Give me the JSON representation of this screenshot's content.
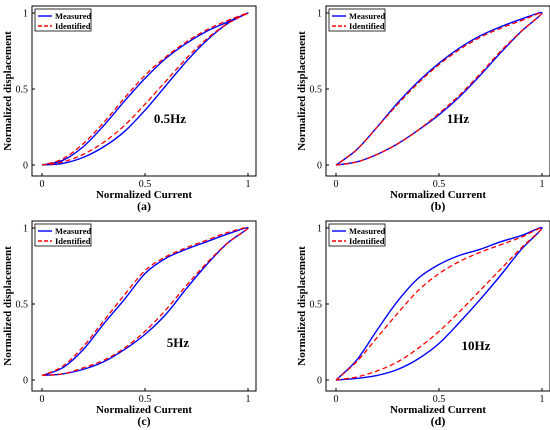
{
  "chart_data": [
    {
      "type": "line",
      "panel_label": "(a)",
      "annotation": "0.5Hz",
      "xlabel": "Normalized Current",
      "ylabel": "Normalized displacement",
      "xlim": [
        0,
        1
      ],
      "ylim": [
        0,
        1
      ],
      "xticks": [
        "0",
        "0.5",
        "1"
      ],
      "yticks": [
        "0",
        "0.5",
        "1"
      ],
      "legend_position": "top-left",
      "colors": {
        "Measured": "#0000ff",
        "Identified": "#ff0000"
      },
      "series": [
        {
          "name": "Measured",
          "style": "solid",
          "ascending": {
            "x": [
              0,
              0.1,
              0.2,
              0.3,
              0.4,
              0.5,
              0.6,
              0.7,
              0.8,
              0.9,
              1.0
            ],
            "y": [
              0.0,
              0.01,
              0.05,
              0.12,
              0.22,
              0.36,
              0.52,
              0.68,
              0.82,
              0.93,
              1.0
            ]
          },
          "descending": {
            "x": [
              1.0,
              0.9,
              0.8,
              0.7,
              0.6,
              0.5,
              0.4,
              0.3,
              0.2,
              0.1,
              0.0
            ],
            "y": [
              1.0,
              0.94,
              0.88,
              0.8,
              0.7,
              0.57,
              0.42,
              0.26,
              0.12,
              0.03,
              0.0
            ]
          }
        },
        {
          "name": "Identified",
          "style": "dashed",
          "ascending": {
            "x": [
              0,
              0.1,
              0.2,
              0.3,
              0.4,
              0.5,
              0.6,
              0.7,
              0.8,
              0.9,
              1.0
            ],
            "y": [
              0.0,
              0.02,
              0.07,
              0.15,
              0.26,
              0.4,
              0.55,
              0.7,
              0.83,
              0.93,
              1.0
            ]
          },
          "descending": {
            "x": [
              1.0,
              0.9,
              0.8,
              0.7,
              0.6,
              0.5,
              0.4,
              0.3,
              0.2,
              0.1,
              0.0
            ],
            "y": [
              1.0,
              0.95,
              0.89,
              0.81,
              0.71,
              0.59,
              0.44,
              0.28,
              0.14,
              0.04,
              0.0
            ]
          }
        }
      ]
    },
    {
      "type": "line",
      "panel_label": "(b)",
      "annotation": "1Hz",
      "xlabel": "Normalized Current",
      "ylabel": "Normalized displacement",
      "xlim": [
        0,
        1
      ],
      "ylim": [
        0,
        1
      ],
      "xticks": [
        "0",
        "0.5",
        "1"
      ],
      "yticks": [
        "0",
        "0.5",
        "1"
      ],
      "legend_position": "top-left",
      "colors": {
        "Measured": "#0000ff",
        "Identified": "#ff0000"
      },
      "series": [
        {
          "name": "Measured",
          "style": "solid",
          "ascending": {
            "x": [
              0,
              0.1,
              0.2,
              0.3,
              0.4,
              0.5,
              0.6,
              0.7,
              0.8,
              0.9,
              1.0
            ],
            "y": [
              0.0,
              0.02,
              0.07,
              0.14,
              0.23,
              0.33,
              0.45,
              0.59,
              0.74,
              0.88,
              1.0
            ]
          },
          "descending": {
            "x": [
              1.0,
              0.9,
              0.8,
              0.7,
              0.6,
              0.5,
              0.4,
              0.3,
              0.2,
              0.1,
              0.0
            ],
            "y": [
              1.0,
              0.96,
              0.91,
              0.85,
              0.77,
              0.67,
              0.55,
              0.41,
              0.25,
              0.1,
              0.0
            ]
          }
        },
        {
          "name": "Identified",
          "style": "dashed",
          "ascending": {
            "x": [
              0,
              0.1,
              0.2,
              0.3,
              0.4,
              0.5,
              0.6,
              0.7,
              0.8,
              0.9,
              1.0
            ],
            "y": [
              0.0,
              0.02,
              0.07,
              0.14,
              0.23,
              0.34,
              0.46,
              0.6,
              0.75,
              0.88,
              1.0
            ]
          },
          "descending": {
            "x": [
              1.0,
              0.9,
              0.8,
              0.7,
              0.6,
              0.5,
              0.4,
              0.3,
              0.2,
              0.1,
              0.0
            ],
            "y": [
              1.0,
              0.95,
              0.9,
              0.84,
              0.76,
              0.66,
              0.54,
              0.4,
              0.25,
              0.1,
              0.0
            ]
          }
        }
      ]
    },
    {
      "type": "line",
      "panel_label": "(c)",
      "annotation": "5Hz",
      "xlabel": "Normalized Current",
      "ylabel": "Normalized displacement",
      "xlim": [
        0,
        1
      ],
      "ylim": [
        0,
        1
      ],
      "xticks": [
        "0",
        "0.5",
        "1"
      ],
      "yticks": [
        "0",
        "0.5",
        "1"
      ],
      "legend_position": "top-left",
      "colors": {
        "Measured": "#0000ff",
        "Identified": "#ff0000"
      },
      "series": [
        {
          "name": "Measured",
          "style": "solid",
          "ascending": {
            "x": [
              0,
              0.1,
              0.2,
              0.3,
              0.4,
              0.5,
              0.6,
              0.7,
              0.8,
              0.9,
              1.0
            ],
            "y": [
              0.03,
              0.04,
              0.07,
              0.12,
              0.2,
              0.3,
              0.43,
              0.6,
              0.76,
              0.9,
              1.0
            ]
          },
          "descending": {
            "x": [
              1.0,
              0.9,
              0.8,
              0.7,
              0.6,
              0.5,
              0.4,
              0.3,
              0.2,
              0.1,
              0.0
            ],
            "y": [
              1.0,
              0.96,
              0.91,
              0.86,
              0.8,
              0.7,
              0.53,
              0.37,
              0.2,
              0.08,
              0.03
            ]
          }
        },
        {
          "name": "Identified",
          "style": "dashed",
          "ascending": {
            "x": [
              0,
              0.1,
              0.2,
              0.3,
              0.4,
              0.5,
              0.6,
              0.7,
              0.8,
              0.9,
              1.0
            ],
            "y": [
              0.03,
              0.04,
              0.08,
              0.13,
              0.21,
              0.32,
              0.46,
              0.62,
              0.77,
              0.9,
              1.0
            ]
          },
          "descending": {
            "x": [
              1.0,
              0.9,
              0.8,
              0.7,
              0.6,
              0.5,
              0.4,
              0.3,
              0.2,
              0.1,
              0.0
            ],
            "y": [
              1.0,
              0.97,
              0.92,
              0.87,
              0.81,
              0.72,
              0.56,
              0.39,
              0.22,
              0.09,
              0.03
            ]
          }
        }
      ]
    },
    {
      "type": "line",
      "panel_label": "(d)",
      "annotation": "10Hz",
      "xlabel": "Normalized Current",
      "ylabel": "Normalized displacement",
      "xlim": [
        0,
        1
      ],
      "ylim": [
        0,
        1
      ],
      "xticks": [
        "0",
        "0.5",
        "1"
      ],
      "yticks": [
        "0",
        "0.5",
        "1"
      ],
      "legend_position": "top-left",
      "colors": {
        "Measured": "#0000ff",
        "Identified": "#ff0000"
      },
      "series": [
        {
          "name": "Measured",
          "style": "solid",
          "ascending": {
            "x": [
              0,
              0.1,
              0.2,
              0.3,
              0.4,
              0.5,
              0.6,
              0.7,
              0.8,
              0.9,
              1.0
            ],
            "y": [
              0.0,
              0.01,
              0.03,
              0.07,
              0.14,
              0.24,
              0.38,
              0.53,
              0.69,
              0.86,
              1.0
            ]
          },
          "descending": {
            "x": [
              1.0,
              0.9,
              0.8,
              0.7,
              0.6,
              0.5,
              0.4,
              0.3,
              0.2,
              0.1,
              0.0
            ],
            "y": [
              1.0,
              0.95,
              0.91,
              0.86,
              0.82,
              0.76,
              0.67,
              0.52,
              0.33,
              0.13,
              0.0
            ]
          }
        },
        {
          "name": "Identified",
          "style": "dashed",
          "ascending": {
            "x": [
              0,
              0.1,
              0.2,
              0.3,
              0.4,
              0.5,
              0.6,
              0.7,
              0.8,
              0.9,
              1.0
            ],
            "y": [
              0.0,
              0.02,
              0.06,
              0.12,
              0.21,
              0.32,
              0.45,
              0.59,
              0.73,
              0.87,
              1.0
            ]
          },
          "descending": {
            "x": [
              1.0,
              0.9,
              0.8,
              0.7,
              0.6,
              0.5,
              0.4,
              0.3,
              0.2,
              0.1,
              0.0
            ],
            "y": [
              1.0,
              0.94,
              0.89,
              0.84,
              0.78,
              0.7,
              0.59,
              0.44,
              0.28,
              0.12,
              0.0
            ]
          }
        }
      ]
    }
  ]
}
